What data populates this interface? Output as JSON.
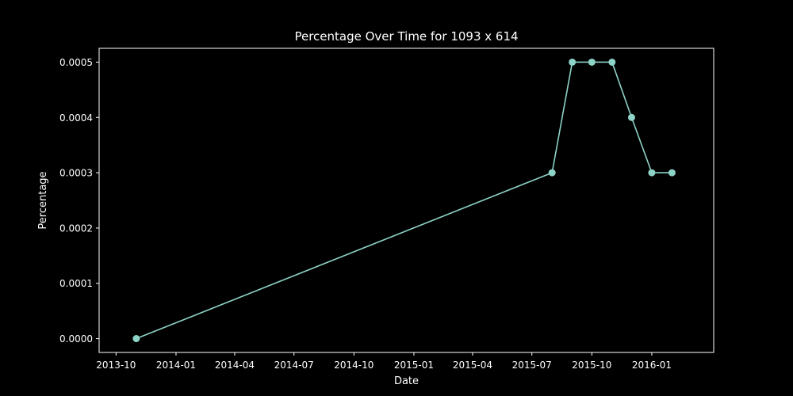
{
  "chart_data": {
    "type": "line",
    "title": "Percentage Over Time for 1093 x 614",
    "xlabel": "Date",
    "ylabel": "Percentage",
    "x": [
      "2013-11-01",
      "2015-08-01",
      "2015-09-01",
      "2015-10-01",
      "2015-11-01",
      "2015-12-01",
      "2016-01-01",
      "2016-02-01"
    ],
    "series": [
      {
        "values": [
          0.0,
          0.0003,
          0.0005,
          0.0005,
          0.0005,
          0.0004,
          0.0003,
          0.0003
        ]
      }
    ],
    "xlim": [
      "2013-09-05",
      "2016-04-05"
    ],
    "ylim": [
      -2.5e-05,
      0.000525
    ],
    "x_ticks": [
      "2013-10-01",
      "2014-01-01",
      "2014-04-01",
      "2014-07-01",
      "2014-10-01",
      "2015-01-01",
      "2015-04-01",
      "2015-07-01",
      "2015-10-01",
      "2016-01-01"
    ],
    "x_tick_labels": [
      "2013-10",
      "2014-01",
      "2014-04",
      "2014-07",
      "2014-10",
      "2015-01",
      "2015-04",
      "2015-07",
      "2015-10",
      "2016-01"
    ],
    "y_ticks": [
      0.0,
      0.0001,
      0.0002,
      0.0003,
      0.0004,
      0.0005
    ],
    "y_tick_labels": [
      "0.0000",
      "0.0001",
      "0.0002",
      "0.0003",
      "0.0004",
      "0.0005"
    ],
    "grid": false,
    "colors": {
      "background": "#000000",
      "line": "#8dd3c7",
      "axes": "#ffffff",
      "text": "#ffffff"
    }
  }
}
